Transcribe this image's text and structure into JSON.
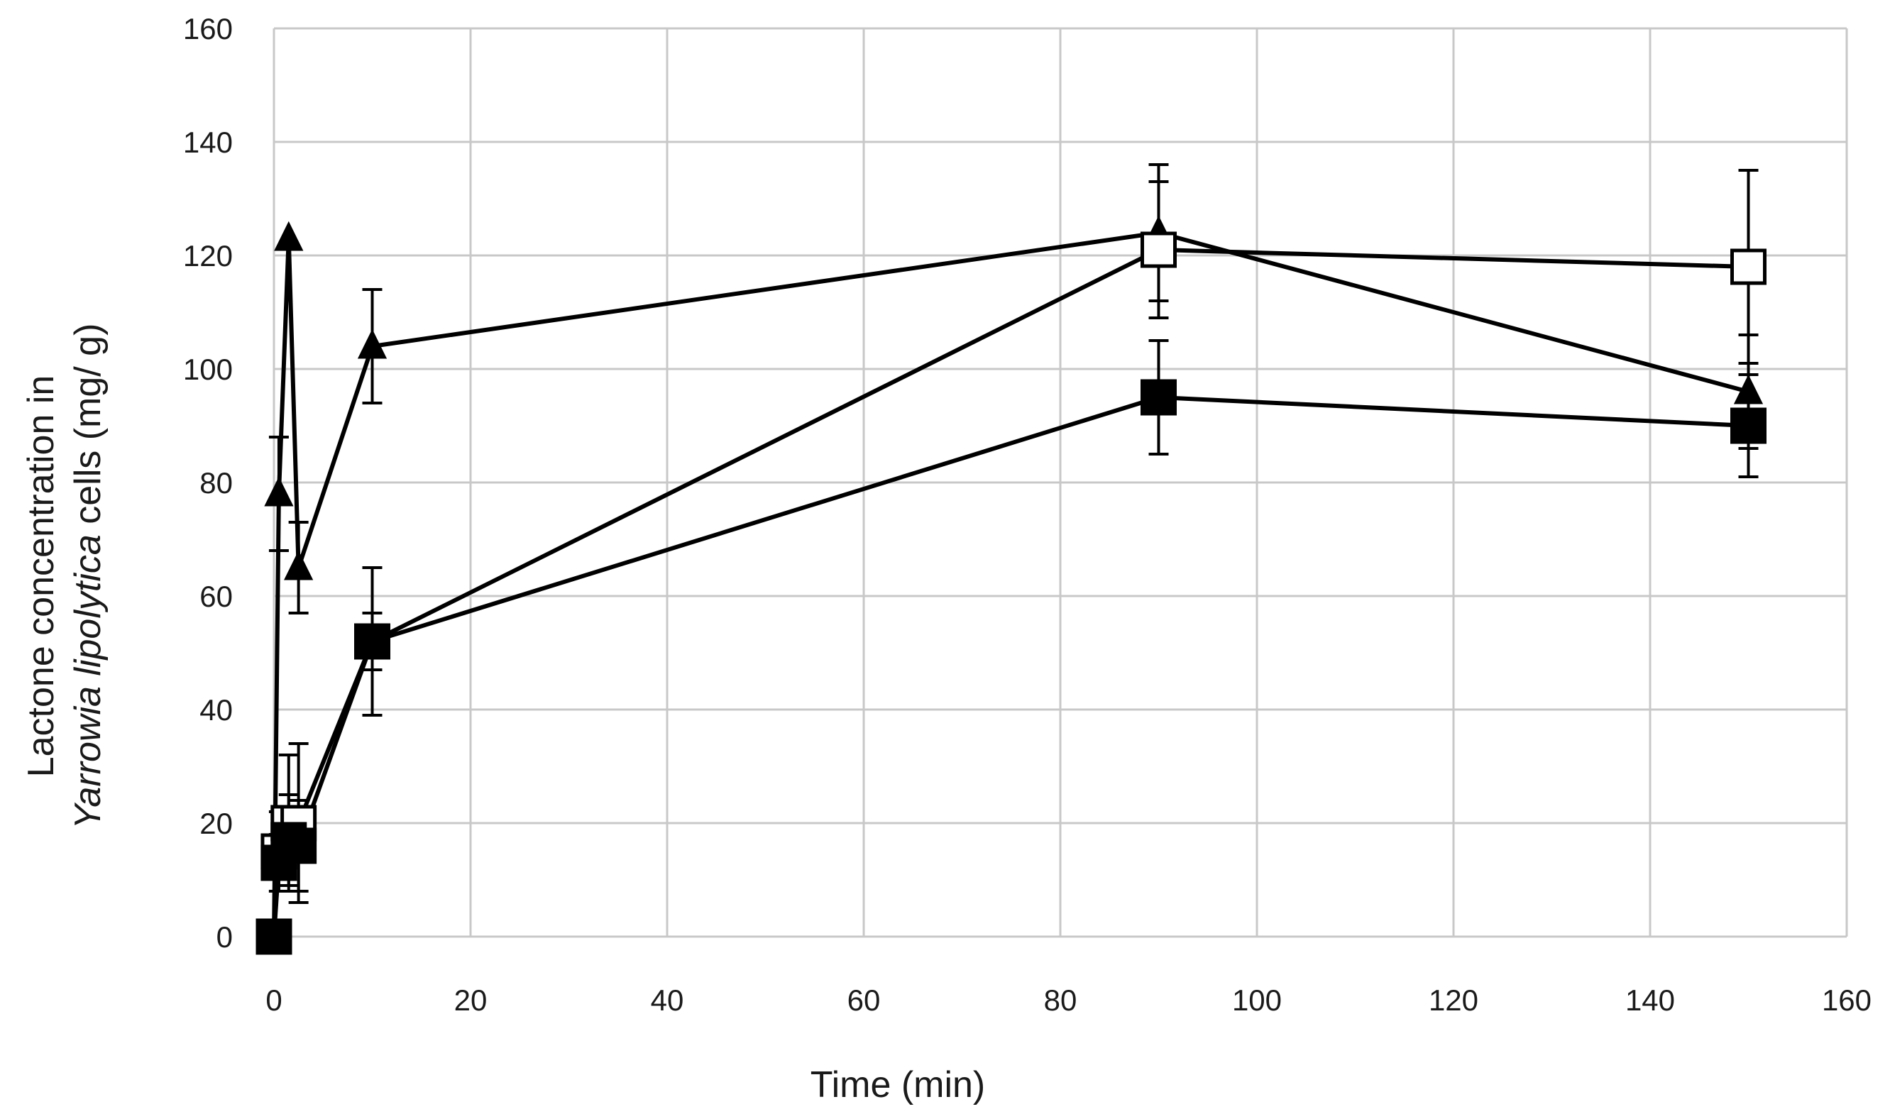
{
  "chart_data": {
    "type": "line",
    "title": "",
    "xlabel": "Time (min)",
    "ylabel": {
      "line1": "Lactone concentration in",
      "line2_italic": "Yarrowia lipolytica",
      "line2_rest": " cells (mg/ g)"
    },
    "xlim": [
      0,
      160
    ],
    "ylim": [
      0,
      160
    ],
    "xticks": [
      0,
      20,
      40,
      60,
      80,
      100,
      120,
      140,
      160
    ],
    "yticks": [
      0,
      20,
      40,
      60,
      80,
      100,
      120,
      140,
      160
    ],
    "grid": true,
    "legend": "none",
    "series": [
      {
        "name": "filled-triangle",
        "marker": "triangle",
        "fill": "filled",
        "points": [
          {
            "x": 0,
            "y": 0,
            "err": 0
          },
          {
            "x": 0.5,
            "y": 78,
            "err": 10
          },
          {
            "x": 1.5,
            "y": 123,
            "err": 0
          },
          {
            "x": 2.5,
            "y": 65,
            "err": 8
          },
          {
            "x": 10,
            "y": 104,
            "err": 10
          },
          {
            "x": 90,
            "y": 124,
            "err": 12
          },
          {
            "x": 150,
            "y": 96,
            "err": 10
          }
        ]
      },
      {
        "name": "open-square",
        "marker": "square",
        "fill": "open",
        "points": [
          {
            "x": 0,
            "y": 0,
            "err": 0
          },
          {
            "x": 0.5,
            "y": 15,
            "err": 7
          },
          {
            "x": 1.5,
            "y": 20,
            "err": 12
          },
          {
            "x": 2.5,
            "y": 20,
            "err": 14
          },
          {
            "x": 10,
            "y": 52,
            "err": 5
          },
          {
            "x": 90,
            "y": 121,
            "err": 12
          },
          {
            "x": 150,
            "y": 118,
            "err": 17
          }
        ]
      },
      {
        "name": "filled-square",
        "marker": "square",
        "fill": "filled",
        "points": [
          {
            "x": 0,
            "y": 0,
            "err": 0
          },
          {
            "x": 0.5,
            "y": 13,
            "err": 5
          },
          {
            "x": 1.5,
            "y": 17,
            "err": 8
          },
          {
            "x": 2.5,
            "y": 16,
            "err": 8
          },
          {
            "x": 10,
            "y": 52,
            "err": 13
          },
          {
            "x": 90,
            "y": 95,
            "err": 10
          },
          {
            "x": 150,
            "y": 90,
            "err": 9
          }
        ]
      }
    ]
  }
}
